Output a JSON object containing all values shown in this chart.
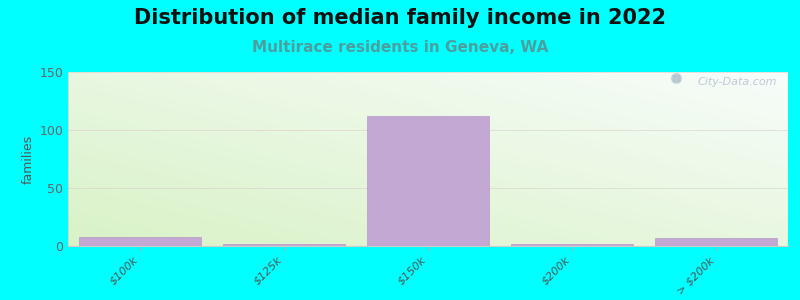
{
  "title": "Distribution of median family income in 2022",
  "subtitle": "Multirace residents in Geneva, WA",
  "categories": [
    "$100k",
    "$125k",
    "$150k",
    "$200k",
    "> $200k"
  ],
  "values": [
    8,
    2,
    112,
    2,
    7
  ],
  "bar_color": "#c4a8d4",
  "bar_edgecolor": "#b898c8",
  "ylabel": "families",
  "ylim": [
    0,
    150
  ],
  "yticks": [
    0,
    50,
    100,
    150
  ],
  "background_outer": "#00ffff",
  "title_fontsize": 15,
  "subtitle_fontsize": 11,
  "subtitle_color": "#4d9e9e",
  "watermark": "City-Data.com",
  "grid_color": "#ddcccc",
  "grid_alpha": 0.6
}
